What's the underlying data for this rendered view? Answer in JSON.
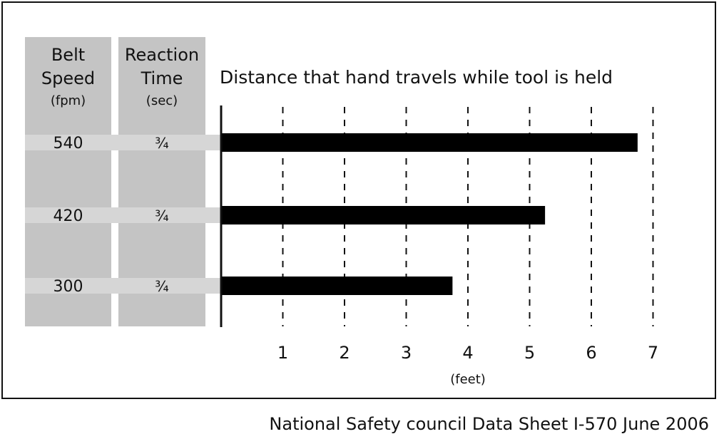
{
  "chart_data": {
    "type": "bar",
    "orientation": "horizontal",
    "title": "Distance that hand travels while tool is held",
    "columns": [
      {
        "lines": [
          "Belt",
          "Speed",
          "(fpm)"
        ]
      },
      {
        "lines": [
          "Reaction",
          "Time",
          "(sec)"
        ]
      }
    ],
    "categories": [
      "540",
      "420",
      "300"
    ],
    "reaction_times": [
      "¾",
      "¾",
      "¾"
    ],
    "values": [
      6.75,
      5.25,
      3.75
    ],
    "xlabel": "(feet)",
    "ylabel": "",
    "xlim": [
      0,
      7
    ],
    "x_ticks": [
      "1",
      "2",
      "3",
      "4",
      "5",
      "6",
      "7"
    ],
    "gridlines": "dashed vertical",
    "bar_color": "#000000",
    "column_color": "#c4c4c4",
    "row_band_color": "#d6d6d6"
  },
  "source_note": "National Safety council Data Sheet I-570 June 2006"
}
